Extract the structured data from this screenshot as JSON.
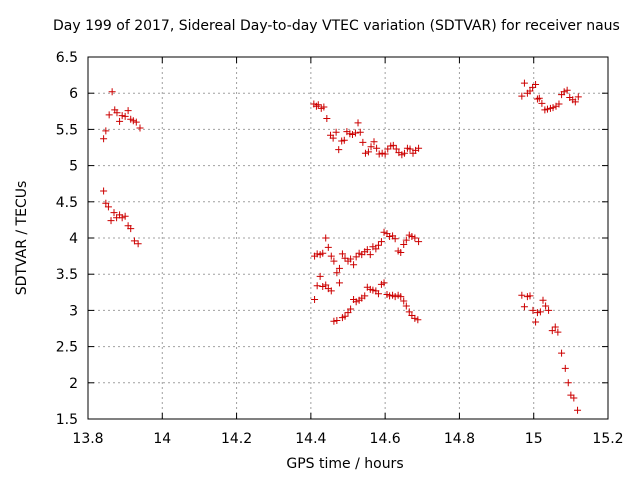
{
  "chart_data": {
    "type": "scatter",
    "title": "Day 199 of 2017, Sidereal Day-to-day VTEC variation (SDTVAR) for receiver naus",
    "xlabel": "GPS time / hours",
    "ylabel": "SDTVAR / TECUs",
    "xlim": [
      13.8,
      15.2
    ],
    "ylim": [
      1.5,
      6.5
    ],
    "xticks": [
      "13.8",
      "14",
      "14.2",
      "14.4",
      "14.6",
      "14.8",
      "15",
      "15.2"
    ],
    "yticks": [
      "1.5",
      "2",
      "2.5",
      "3",
      "3.5",
      "4",
      "4.5",
      "5",
      "5.5",
      "6",
      "6.5"
    ],
    "grid": true,
    "marker": "+",
    "color": "#cc0000",
    "points": [
      [
        13.842,
        5.37
      ],
      [
        13.848,
        5.48
      ],
      [
        13.857,
        5.7
      ],
      [
        13.865,
        6.02
      ],
      [
        13.872,
        5.77
      ],
      [
        13.878,
        5.73
      ],
      [
        13.885,
        5.61
      ],
      [
        13.892,
        5.69
      ],
      [
        13.9,
        5.68
      ],
      [
        13.908,
        5.76
      ],
      [
        13.915,
        5.64
      ],
      [
        13.922,
        5.62
      ],
      [
        13.93,
        5.6
      ],
      [
        13.94,
        5.52
      ],
      [
        13.842,
        4.65
      ],
      [
        13.848,
        4.48
      ],
      [
        13.855,
        4.43
      ],
      [
        13.862,
        4.24
      ],
      [
        13.87,
        4.35
      ],
      [
        13.877,
        4.28
      ],
      [
        13.885,
        4.32
      ],
      [
        13.892,
        4.28
      ],
      [
        13.9,
        4.3
      ],
      [
        13.908,
        4.17
      ],
      [
        13.915,
        4.13
      ],
      [
        13.925,
        3.96
      ],
      [
        13.935,
        3.92
      ],
      [
        14.408,
        5.85
      ],
      [
        14.415,
        5.82
      ],
      [
        14.42,
        5.84
      ],
      [
        14.428,
        5.79
      ],
      [
        14.435,
        5.81
      ],
      [
        14.443,
        5.65
      ],
      [
        14.453,
        5.42
      ],
      [
        14.46,
        5.38
      ],
      [
        14.468,
        5.46
      ],
      [
        14.475,
        5.22
      ],
      [
        14.483,
        5.34
      ],
      [
        14.49,
        5.35
      ],
      [
        14.497,
        5.47
      ],
      [
        14.505,
        5.44
      ],
      [
        14.512,
        5.43
      ],
      [
        14.52,
        5.45
      ],
      [
        14.527,
        5.59
      ],
      [
        14.533,
        5.46
      ],
      [
        14.54,
        5.32
      ],
      [
        14.547,
        5.17
      ],
      [
        14.555,
        5.19
      ],
      [
        14.562,
        5.26
      ],
      [
        14.57,
        5.33
      ],
      [
        14.577,
        5.24
      ],
      [
        14.584,
        5.16
      ],
      [
        14.592,
        5.17
      ],
      [
        14.6,
        5.16
      ],
      [
        14.607,
        5.23
      ],
      [
        14.615,
        5.27
      ],
      [
        14.622,
        5.28
      ],
      [
        14.63,
        5.23
      ],
      [
        14.637,
        5.18
      ],
      [
        14.645,
        5.15
      ],
      [
        14.652,
        5.17
      ],
      [
        14.66,
        5.24
      ],
      [
        14.667,
        5.23
      ],
      [
        14.675,
        5.17
      ],
      [
        14.682,
        5.21
      ],
      [
        14.69,
        5.24
      ],
      [
        14.41,
        3.75
      ],
      [
        14.417,
        3.78
      ],
      [
        14.425,
        3.77
      ],
      [
        14.432,
        3.79
      ],
      [
        14.44,
        4.0
      ],
      [
        14.447,
        3.87
      ],
      [
        14.455,
        3.75
      ],
      [
        14.462,
        3.68
      ],
      [
        14.47,
        3.52
      ],
      [
        14.477,
        3.58
      ],
      [
        14.485,
        3.78
      ],
      [
        14.492,
        3.72
      ],
      [
        14.5,
        3.68
      ],
      [
        14.507,
        3.71
      ],
      [
        14.515,
        3.63
      ],
      [
        14.522,
        3.74
      ],
      [
        14.53,
        3.79
      ],
      [
        14.537,
        3.77
      ],
      [
        14.545,
        3.81
      ],
      [
        14.552,
        3.84
      ],
      [
        14.56,
        3.77
      ],
      [
        14.567,
        3.88
      ],
      [
        14.575,
        3.85
      ],
      [
        14.582,
        3.9
      ],
      [
        14.59,
        3.95
      ],
      [
        14.597,
        4.08
      ],
      [
        14.605,
        4.06
      ],
      [
        14.612,
        4.02
      ],
      [
        14.62,
        4.03
      ],
      [
        14.627,
        3.99
      ],
      [
        14.635,
        3.82
      ],
      [
        14.642,
        3.8
      ],
      [
        14.65,
        3.91
      ],
      [
        14.657,
        3.97
      ],
      [
        14.665,
        4.04
      ],
      [
        14.672,
        4.02
      ],
      [
        14.68,
        4.0
      ],
      [
        14.69,
        3.95
      ],
      [
        14.41,
        3.15
      ],
      [
        14.417,
        3.34
      ],
      [
        14.425,
        3.47
      ],
      [
        14.432,
        3.33
      ],
      [
        14.44,
        3.35
      ],
      [
        14.447,
        3.3
      ],
      [
        14.455,
        3.27
      ],
      [
        14.462,
        2.85
      ],
      [
        14.47,
        2.86
      ],
      [
        14.477,
        3.38
      ],
      [
        14.485,
        2.9
      ],
      [
        14.492,
        2.92
      ],
      [
        14.5,
        2.97
      ],
      [
        14.507,
        3.02
      ],
      [
        14.515,
        3.15
      ],
      [
        14.522,
        3.12
      ],
      [
        14.53,
        3.14
      ],
      [
        14.537,
        3.17
      ],
      [
        14.545,
        3.2
      ],
      [
        14.552,
        3.32
      ],
      [
        14.56,
        3.29
      ],
      [
        14.567,
        3.28
      ],
      [
        14.575,
        3.27
      ],
      [
        14.582,
        3.23
      ],
      [
        14.59,
        3.36
      ],
      [
        14.597,
        3.38
      ],
      [
        14.605,
        3.22
      ],
      [
        14.612,
        3.2
      ],
      [
        14.62,
        3.21
      ],
      [
        14.627,
        3.19
      ],
      [
        14.635,
        3.21
      ],
      [
        14.642,
        3.19
      ],
      [
        14.65,
        3.13
      ],
      [
        14.657,
        3.06
      ],
      [
        14.665,
        2.98
      ],
      [
        14.672,
        2.93
      ],
      [
        14.68,
        2.89
      ],
      [
        14.688,
        2.87
      ],
      [
        14.968,
        5.96
      ],
      [
        14.975,
        6.14
      ],
      [
        14.983,
        6.0
      ],
      [
        14.99,
        6.03
      ],
      [
        14.997,
        6.08
      ],
      [
        15.005,
        6.12
      ],
      [
        15.01,
        5.92
      ],
      [
        15.015,
        5.93
      ],
      [
        15.022,
        5.86
      ],
      [
        15.03,
        5.77
      ],
      [
        15.037,
        5.78
      ],
      [
        15.045,
        5.79
      ],
      [
        15.052,
        5.8
      ],
      [
        15.06,
        5.82
      ],
      [
        15.068,
        5.85
      ],
      [
        15.075,
        5.98
      ],
      [
        15.082,
        6.02
      ],
      [
        15.09,
        6.04
      ],
      [
        15.097,
        5.94
      ],
      [
        15.105,
        5.91
      ],
      [
        15.112,
        5.88
      ],
      [
        15.12,
        5.95
      ],
      [
        14.968,
        3.21
      ],
      [
        14.975,
        3.05
      ],
      [
        14.983,
        3.19
      ],
      [
        14.99,
        3.2
      ],
      [
        14.998,
        3.0
      ],
      [
        15.005,
        2.84
      ],
      [
        15.01,
        2.97
      ],
      [
        15.018,
        2.98
      ],
      [
        15.025,
        3.14
      ],
      [
        15.032,
        3.06
      ],
      [
        15.04,
        3.0
      ],
      [
        15.05,
        2.72
      ],
      [
        15.058,
        2.77
      ],
      [
        15.065,
        2.7
      ],
      [
        15.075,
        2.41
      ],
      [
        15.085,
        2.2
      ],
      [
        15.093,
        2.0
      ],
      [
        15.1,
        1.83
      ],
      [
        15.108,
        1.79
      ],
      [
        15.118,
        1.62
      ]
    ]
  }
}
